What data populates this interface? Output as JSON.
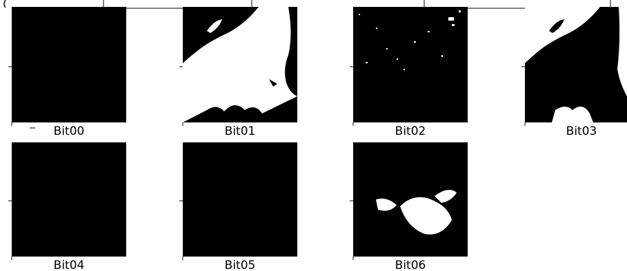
{
  "panels": [
    {
      "label": "Bit00"
    },
    {
      "label": "Bit01"
    },
    {
      "label": "Bit02"
    },
    {
      "label": "Bit03"
    },
    {
      "label": "Bit04"
    },
    {
      "label": "Bit05"
    },
    {
      "label": "Bit06"
    }
  ]
}
